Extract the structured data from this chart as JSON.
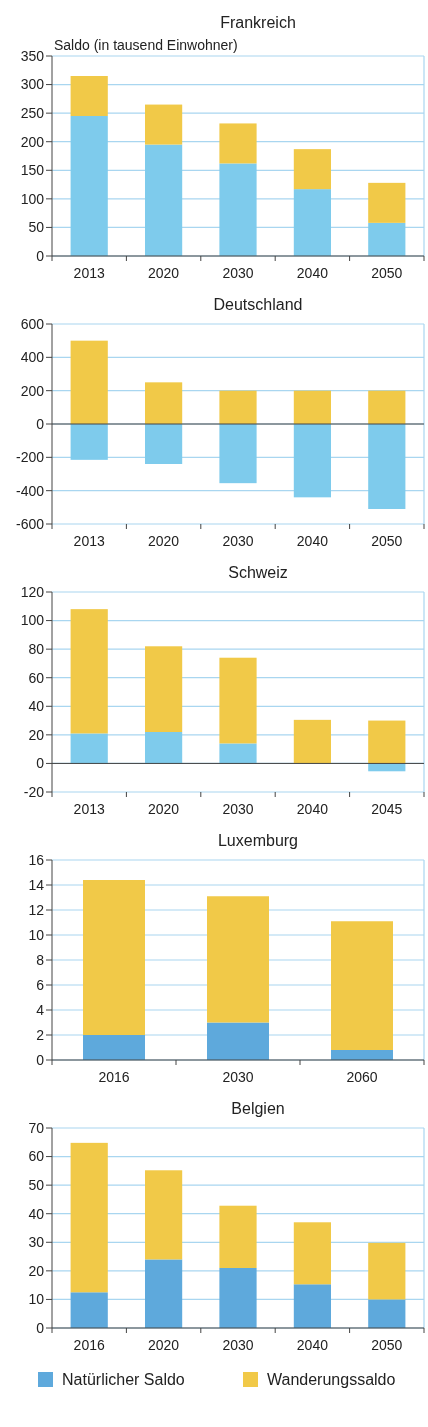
{
  "chart_data": [
    {
      "type": "bar",
      "title": "Frankreich",
      "ylabel": "Saldo (in tausend Einwohner)",
      "categories": [
        "2013",
        "2020",
        "2030",
        "2040",
        "2050"
      ],
      "stacked": true,
      "grid": "y",
      "ylim": [
        0,
        350
      ],
      "yticks": [
        0,
        50,
        100,
        150,
        200,
        250,
        300,
        350
      ],
      "series": [
        {
          "color": "#7ecbec",
          "values": [
            245,
            195,
            162,
            117,
            58
          ]
        },
        {
          "color": "#f1c948",
          "values": [
            70,
            70,
            70,
            70,
            70
          ]
        }
      ]
    },
    {
      "type": "bar",
      "title": "Deutschland",
      "categories": [
        "2013",
        "2020",
        "2030",
        "2040",
        "2050"
      ],
      "stacked": true,
      "grid": "y",
      "ylim": [
        -600,
        600
      ],
      "yticks": [
        -600,
        -400,
        -200,
        0,
        200,
        400,
        600
      ],
      "series": [
        {
          "color": "#7ecbec",
          "values": [
            -215,
            -240,
            -355,
            -440,
            -510
          ]
        },
        {
          "color": "#f1c948",
          "values": [
            500,
            250,
            200,
            200,
            200
          ]
        }
      ]
    },
    {
      "type": "bar",
      "title": "Schweiz",
      "categories": [
        "2013",
        "2020",
        "2030",
        "2040",
        "2045"
      ],
      "stacked": true,
      "grid": "y",
      "ylim": [
        -20,
        120
      ],
      "yticks": [
        -20,
        0,
        20,
        40,
        60,
        80,
        100,
        120
      ],
      "series": [
        {
          "color": "#7ecbec",
          "values": [
            21,
            22,
            14,
            null,
            -5.5
          ]
        },
        {
          "color": "#f1c948",
          "values": [
            87,
            60,
            60,
            30.5,
            30
          ]
        }
      ]
    },
    {
      "type": "bar",
      "title": "Luxemburg",
      "categories": [
        "2016",
        "2030",
        "2060"
      ],
      "stacked": true,
      "grid": "y",
      "ylim": [
        0,
        16
      ],
      "yticks": [
        0,
        2,
        4,
        6,
        8,
        10,
        12,
        14,
        16
      ],
      "series": [
        {
          "color": "#5ea9dc",
          "values": [
            2,
            3,
            0.8
          ]
        },
        {
          "color": "#f1c948",
          "values": [
            12.4,
            10.1,
            10.3
          ]
        }
      ]
    },
    {
      "type": "bar",
      "title": "Belgien",
      "categories": [
        "2016",
        "2020",
        "2030",
        "2040",
        "2050"
      ],
      "stacked": true,
      "grid": "y",
      "legend": "bottom",
      "ylim": [
        0,
        70
      ],
      "yticks": [
        0,
        10,
        20,
        30,
        40,
        50,
        60,
        70
      ],
      "series": [
        {
          "name": "Natürlicher Saldo",
          "color": "#5ea9dc",
          "values": [
            12.5,
            24,
            21,
            15.3,
            10
          ]
        },
        {
          "name": "Wanderungssaldo",
          "color": "#f1c948",
          "values": [
            52.3,
            31.2,
            21.8,
            21.7,
            19.8
          ]
        }
      ]
    }
  ]
}
